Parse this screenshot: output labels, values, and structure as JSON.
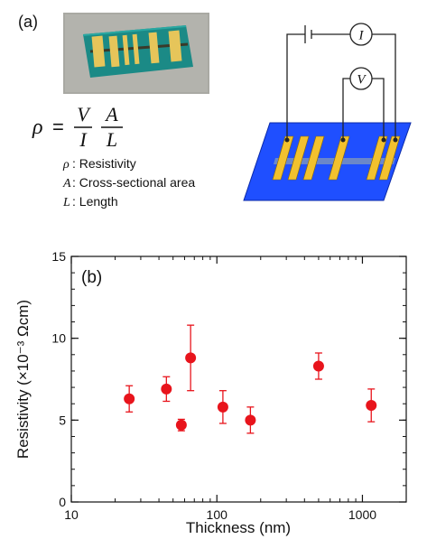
{
  "panel_a": {
    "label": "(a)",
    "formula": {
      "lhs": "ρ",
      "eq": "=",
      "num1": "V",
      "den1": "I",
      "num2": "A",
      "den2": "L"
    },
    "legend": [
      {
        "symbol": "ρ",
        "text": ": Resistivity"
      },
      {
        "symbol": "A",
        "text": ": Cross-sectional area"
      },
      {
        "symbol": "L",
        "text": ": Length"
      }
    ],
    "circuit": {
      "current_meter": "I",
      "voltage_meter": "V"
    },
    "colors": {
      "substrate": "#1f4fff",
      "electrode": "#f2c12e",
      "wire": "#222222",
      "photo_bg": "#a9a9a3",
      "photo_substrate": "#1b8a86"
    }
  },
  "chart_data": {
    "type": "scatter",
    "panel_label": "(b)",
    "xlabel": "Thickness (nm)",
    "ylabel": "Resistivity (×10⁻³ Ωcm)",
    "xscale": "log",
    "xlim": [
      10,
      2000
    ],
    "ylim": [
      0,
      15
    ],
    "xticks": [
      10,
      100,
      1000
    ],
    "xtick_labels": [
      "10",
      "100",
      "1000"
    ],
    "yticks": [
      0,
      5,
      10,
      15
    ],
    "ytick_labels": [
      "0",
      "5",
      "10",
      "15"
    ],
    "marker_color": "#e8141c",
    "points": [
      {
        "x": 25,
        "y": 6.3,
        "err": 0.8
      },
      {
        "x": 45,
        "y": 6.9,
        "err": 0.75
      },
      {
        "x": 57,
        "y": 4.7,
        "err": 0.35
      },
      {
        "x": 66,
        "y": 8.8,
        "err": 2.0
      },
      {
        "x": 110,
        "y": 5.8,
        "err": 1.0
      },
      {
        "x": 170,
        "y": 5.0,
        "err": 0.8
      },
      {
        "x": 500,
        "y": 8.3,
        "err": 0.8
      },
      {
        "x": 1150,
        "y": 5.9,
        "err": 1.0
      }
    ]
  }
}
